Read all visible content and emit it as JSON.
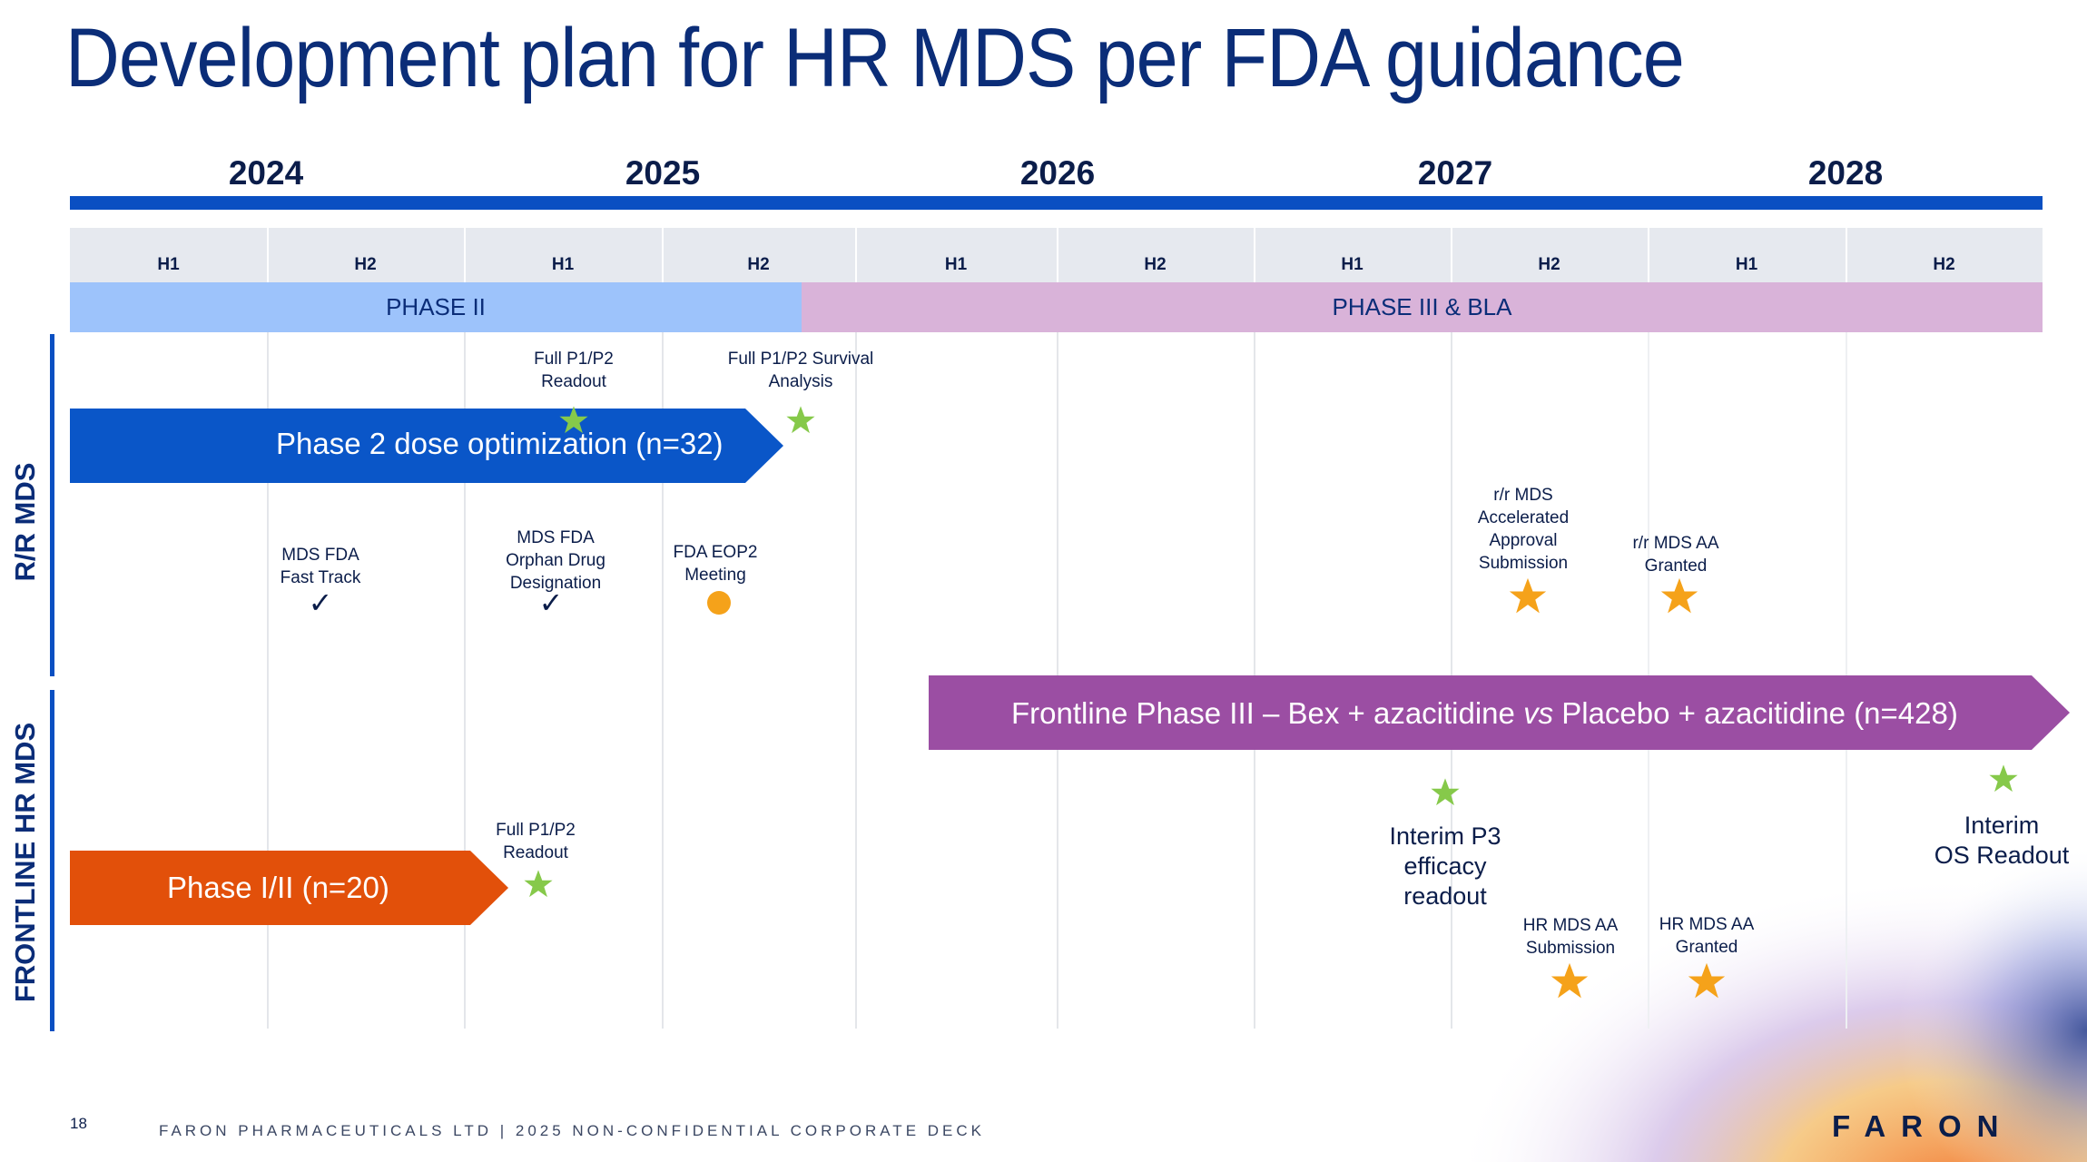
{
  "title": "Development plan for HR MDS per FDA guidance",
  "years": [
    "2024",
    "2025",
    "2026",
    "2027",
    "2028"
  ],
  "halves": [
    "H1",
    "H2",
    "H1",
    "H2",
    "H1",
    "H2",
    "H1",
    "H2",
    "H1",
    "H2"
  ],
  "phases": {
    "phase2": "PHASE II",
    "phase3": "PHASE III & BLA"
  },
  "rows": {
    "rr": "R/R MDS",
    "frontline": "FRONTLINE HR MDS"
  },
  "arrows": {
    "rr_phase2": "Phase 2 dose optimization (n=32)",
    "frontline_phase3_a": "Frontline Phase III – Bex + azacitidine ",
    "frontline_phase3_vs": "vs",
    "frontline_phase3_b": " Placebo + azacitidine (n=428)",
    "frontline_phase12": "Phase I/II (n=20)"
  },
  "milestones": {
    "rr_full_readout": "Full P1/P2\nReadout",
    "rr_survival": "Full P1/P2 Survival\nAnalysis",
    "fast_track": "MDS FDA\nFast Track",
    "orphan": "MDS FDA\nOrphan Drug\nDesignation",
    "eop2": "FDA EOP2\nMeeting",
    "rr_aa_submission": "r/r MDS\nAccelerated\nApproval\nSubmission",
    "rr_aa_granted": "r/r MDS AA\nGranted",
    "interim_p3": "Interim P3\nefficacy\nreadout",
    "interim_os": "Interim\nOS Readout",
    "fl_full_readout": "Full P1/P2\nReadout",
    "hr_aa_submission": "HR MDS AA\nSubmission",
    "hr_aa_granted": "HR MDS AA\nGranted"
  },
  "colors": {
    "navy": "#0b2d78",
    "blue_arrow": "#0a56c8",
    "purple_arrow": "#9b4ea3",
    "orange_arrow": "#e2500a",
    "green_star": "#86c94a",
    "orange_star": "#f5a21a"
  },
  "footer": {
    "page": "18",
    "text": "FARON PHARMACEUTICALS LTD | 2025 NON-CONFIDENTIAL CORPORATE DECK",
    "logo": "FARON"
  }
}
